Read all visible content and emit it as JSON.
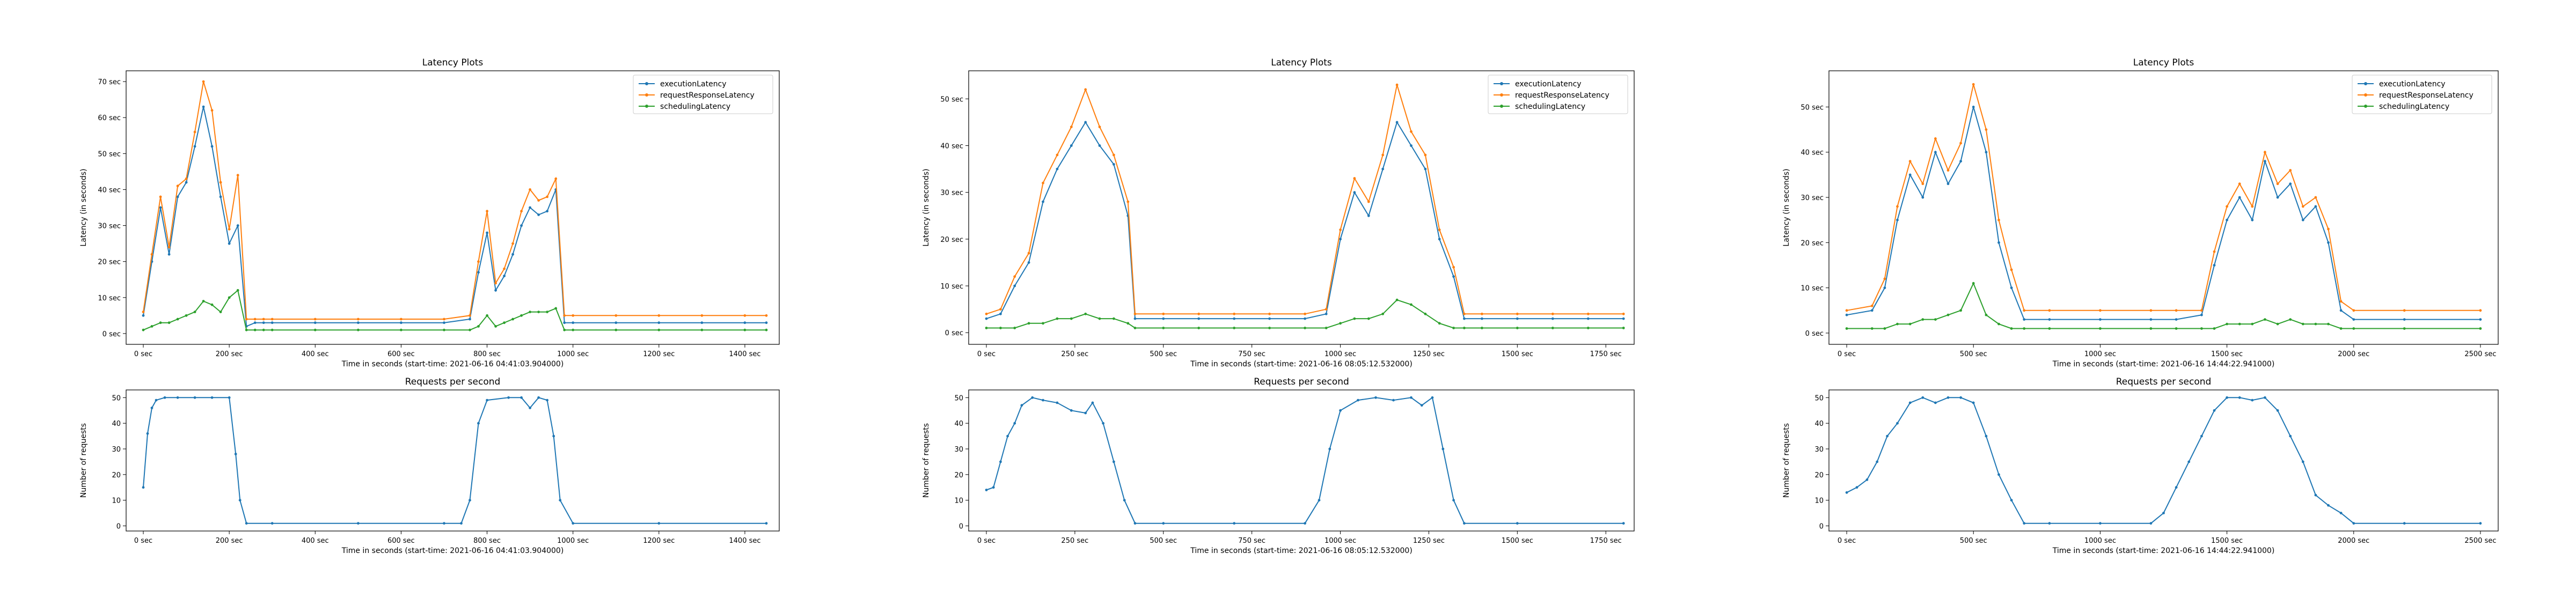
{
  "colors": {
    "execution": "#1f77b4",
    "request": "#ff7f0e",
    "scheduling": "#2ca02c",
    "rps": "#1f77b4"
  },
  "chart_data": [
    {
      "type": "line",
      "title": "Latency Plots",
      "xlabel": "Time in seconds (start-time: 2021-06-16 04:41:03.904000)",
      "ylabel": "Latency (in seconds)",
      "xlim": [
        -40,
        1480
      ],
      "ylim": [
        -3,
        73
      ],
      "xticks": [
        0,
        200,
        400,
        600,
        800,
        1000,
        1200,
        1400
      ],
      "xtick_labels": [
        "0 sec",
        "200 sec",
        "400 sec",
        "600 sec",
        "800 sec",
        "1000 sec",
        "1200 sec",
        "1400 sec"
      ],
      "yticks": [
        0,
        10,
        20,
        30,
        40,
        50,
        60,
        70
      ],
      "ytick_labels": [
        "0 sec",
        "10 sec",
        "20 sec",
        "30 sec",
        "40 sec",
        "50 sec",
        "60 sec",
        "70 sec"
      ],
      "legend": "top-right",
      "grid": false,
      "x": [
        0,
        20,
        40,
        60,
        80,
        100,
        120,
        140,
        160,
        180,
        200,
        220,
        240,
        260,
        280,
        300,
        400,
        500,
        600,
        700,
        760,
        780,
        800,
        820,
        840,
        860,
        880,
        900,
        920,
        940,
        960,
        980,
        1000,
        1100,
        1200,
        1300,
        1400,
        1450
      ],
      "series": [
        {
          "name": "executionLatency",
          "values": [
            5,
            20,
            35,
            22,
            38,
            42,
            52,
            63,
            52,
            38,
            25,
            30,
            2,
            3,
            3,
            3,
            3,
            3,
            3,
            3,
            4,
            17,
            28,
            12,
            16,
            22,
            30,
            35,
            33,
            34,
            40,
            3,
            3,
            3,
            3,
            3,
            3,
            3
          ]
        },
        {
          "name": "requestResponseLatency",
          "values": [
            6,
            22,
            38,
            24,
            41,
            43,
            56,
            70,
            62,
            42,
            29,
            44,
            4,
            4,
            4,
            4,
            4,
            4,
            4,
            4,
            5,
            20,
            34,
            14,
            18,
            25,
            34,
            40,
            37,
            38,
            43,
            5,
            5,
            5,
            5,
            5,
            5,
            5
          ]
        },
        {
          "name": "schedulingLatency",
          "values": [
            1,
            2,
            3,
            3,
            4,
            5,
            6,
            9,
            8,
            6,
            10,
            12,
            1,
            1,
            1,
            1,
            1,
            1,
            1,
            1,
            1,
            2,
            5,
            2,
            3,
            4,
            5,
            6,
            6,
            6,
            7,
            1,
            1,
            1,
            1,
            1,
            1,
            1
          ]
        }
      ]
    },
    {
      "type": "line",
      "title": "Requests per second",
      "xlabel": "Time in seconds (start-time: 2021-06-16 04:41:03.904000)",
      "ylabel": "Number of requests",
      "xlim": [
        -40,
        1480
      ],
      "ylim": [
        -2,
        53
      ],
      "xticks": [
        0,
        200,
        400,
        600,
        800,
        1000,
        1200,
        1400
      ],
      "xtick_labels": [
        "0 sec",
        "200 sec",
        "400 sec",
        "600 sec",
        "800 sec",
        "1000 sec",
        "1200 sec",
        "1400 sec"
      ],
      "yticks": [
        0,
        10,
        20,
        30,
        40,
        50
      ],
      "ytick_labels": [
        "0",
        "10",
        "20",
        "30",
        "40",
        "50"
      ],
      "x": [
        0,
        10,
        20,
        30,
        50,
        80,
        120,
        160,
        200,
        215,
        225,
        240,
        300,
        500,
        700,
        740,
        760,
        780,
        800,
        850,
        880,
        900,
        920,
        940,
        955,
        970,
        1000,
        1200,
        1450
      ],
      "series": [
        {
          "name": "",
          "values": [
            15,
            36,
            46,
            49,
            50,
            50,
            50,
            50,
            50,
            28,
            10,
            1,
            1,
            1,
            1,
            1,
            10,
            40,
            49,
            50,
            50,
            46,
            50,
            49,
            35,
            10,
            1,
            1,
            1
          ]
        }
      ]
    },
    {
      "type": "line",
      "title": "Latency Plots",
      "xlabel": "Time in seconds (start-time: 2021-06-16 08:05:12.532000)",
      "ylabel": "Latency (in seconds)",
      "xlim": [
        -50,
        1830
      ],
      "ylim": [
        -2.5,
        56
      ],
      "xticks": [
        0,
        250,
        500,
        750,
        1000,
        1250,
        1500,
        1750
      ],
      "xtick_labels": [
        "0 sec",
        "250 sec",
        "500 sec",
        "750 sec",
        "1000 sec",
        "1250 sec",
        "1500 sec",
        "1750 sec"
      ],
      "yticks": [
        0,
        10,
        20,
        30,
        40,
        50
      ],
      "ytick_labels": [
        "0 sec",
        "10 sec",
        "20 sec",
        "30 sec",
        "40 sec",
        "50 sec"
      ],
      "legend": "top-right",
      "grid": false,
      "x": [
        0,
        40,
        80,
        120,
        160,
        200,
        240,
        280,
        320,
        360,
        400,
        420,
        500,
        600,
        700,
        800,
        900,
        960,
        1000,
        1040,
        1080,
        1120,
        1160,
        1200,
        1240,
        1280,
        1320,
        1350,
        1400,
        1500,
        1600,
        1700,
        1800
      ],
      "series": [
        {
          "name": "executionLatency",
          "values": [
            3,
            4,
            10,
            15,
            28,
            35,
            40,
            45,
            40,
            36,
            25,
            3,
            3,
            3,
            3,
            3,
            3,
            4,
            20,
            30,
            25,
            35,
            45,
            40,
            35,
            20,
            12,
            3,
            3,
            3,
            3,
            3,
            3
          ]
        },
        {
          "name": "requestResponseLatency",
          "values": [
            4,
            5,
            12,
            17,
            32,
            38,
            44,
            52,
            44,
            38,
            28,
            4,
            4,
            4,
            4,
            4,
            4,
            5,
            22,
            33,
            28,
            38,
            53,
            43,
            38,
            22,
            14,
            4,
            4,
            4,
            4,
            4,
            4
          ]
        },
        {
          "name": "schedulingLatency",
          "values": [
            1,
            1,
            1,
            2,
            2,
            3,
            3,
            4,
            3,
            3,
            2,
            1,
            1,
            1,
            1,
            1,
            1,
            1,
            2,
            3,
            3,
            4,
            7,
            6,
            4,
            2,
            1,
            1,
            1,
            1,
            1,
            1,
            1
          ]
        }
      ]
    },
    {
      "type": "line",
      "title": "Requests per second",
      "xlabel": "Time in seconds (start-time: 2021-06-16 08:05:12.532000)",
      "ylabel": "Number of requests",
      "xlim": [
        -50,
        1830
      ],
      "ylim": [
        -2,
        53
      ],
      "xticks": [
        0,
        250,
        500,
        750,
        1000,
        1250,
        1500,
        1750
      ],
      "xtick_labels": [
        "0 sec",
        "250 sec",
        "500 sec",
        "750 sec",
        "1000 sec",
        "1250 sec",
        "1500 sec",
        "1750 sec"
      ],
      "yticks": [
        0,
        10,
        20,
        30,
        40,
        50
      ],
      "ytick_labels": [
        "0",
        "10",
        "20",
        "30",
        "40",
        "50"
      ],
      "x": [
        0,
        20,
        40,
        60,
        80,
        100,
        130,
        160,
        200,
        240,
        280,
        300,
        330,
        360,
        390,
        420,
        500,
        700,
        900,
        940,
        970,
        1000,
        1050,
        1100,
        1150,
        1200,
        1230,
        1260,
        1290,
        1320,
        1350,
        1500,
        1800
      ],
      "series": [
        {
          "name": "",
          "values": [
            14,
            15,
            25,
            35,
            40,
            47,
            50,
            49,
            48,
            45,
            44,
            48,
            40,
            25,
            10,
            1,
            1,
            1,
            1,
            10,
            30,
            45,
            49,
            50,
            49,
            50,
            47,
            50,
            30,
            10,
            1,
            1,
            1
          ]
        }
      ]
    },
    {
      "type": "line",
      "title": "Latency Plots",
      "xlabel": "Time in seconds (start-time: 2021-06-16 14:44:22.941000)",
      "ylabel": "Latency (in seconds)",
      "xlim": [
        -70,
        2570
      ],
      "ylim": [
        -2.5,
        58
      ],
      "xticks": [
        0,
        500,
        1000,
        1500,
        2000,
        2500
      ],
      "xtick_labels": [
        "0 sec",
        "500 sec",
        "1000 sec",
        "1500 sec",
        "2000 sec",
        "2500 sec"
      ],
      "yticks": [
        0,
        10,
        20,
        30,
        40,
        50
      ],
      "ytick_labels": [
        "0 sec",
        "10 sec",
        "20 sec",
        "30 sec",
        "40 sec",
        "50 sec"
      ],
      "legend": "top-right",
      "grid": false,
      "x": [
        0,
        100,
        150,
        200,
        250,
        300,
        350,
        400,
        450,
        500,
        550,
        600,
        650,
        700,
        800,
        1000,
        1200,
        1300,
        1400,
        1450,
        1500,
        1550,
        1600,
        1650,
        1700,
        1750,
        1800,
        1850,
        1900,
        1950,
        2000,
        2200,
        2500
      ],
      "series": [
        {
          "name": "executionLatency",
          "values": [
            4,
            5,
            10,
            25,
            35,
            30,
            40,
            33,
            38,
            50,
            40,
            20,
            10,
            3,
            3,
            3,
            3,
            3,
            4,
            15,
            25,
            30,
            25,
            38,
            30,
            33,
            25,
            28,
            20,
            5,
            3,
            3,
            3
          ]
        },
        {
          "name": "requestResponseLatency",
          "values": [
            5,
            6,
            12,
            28,
            38,
            33,
            43,
            36,
            42,
            55,
            45,
            25,
            14,
            5,
            5,
            5,
            5,
            5,
            5,
            18,
            28,
            33,
            28,
            40,
            33,
            36,
            28,
            30,
            23,
            7,
            5,
            5,
            5
          ]
        },
        {
          "name": "schedulingLatency",
          "values": [
            1,
            1,
            1,
            2,
            2,
            3,
            3,
            4,
            5,
            11,
            4,
            2,
            1,
            1,
            1,
            1,
            1,
            1,
            1,
            1,
            2,
            2,
            2,
            3,
            2,
            3,
            2,
            2,
            2,
            1,
            1,
            1,
            1
          ]
        }
      ]
    },
    {
      "type": "line",
      "title": "Requests per second",
      "xlabel": "Time in seconds (start-time: 2021-06-16 14:44:22.941000)",
      "ylabel": "Number of requests",
      "xlim": [
        -70,
        2570
      ],
      "ylim": [
        -2,
        53
      ],
      "xticks": [
        0,
        500,
        1000,
        1500,
        2000,
        2500
      ],
      "xtick_labels": [
        "0 sec",
        "500 sec",
        "1000 sec",
        "1500 sec",
        "2000 sec",
        "2500 sec"
      ],
      "yticks": [
        0,
        10,
        20,
        30,
        40,
        50
      ],
      "ytick_labels": [
        "0",
        "10",
        "20",
        "30",
        "40",
        "50"
      ],
      "x": [
        0,
        40,
        80,
        120,
        160,
        200,
        250,
        300,
        350,
        400,
        450,
        500,
        550,
        600,
        650,
        700,
        800,
        1000,
        1200,
        1250,
        1300,
        1350,
        1400,
        1450,
        1500,
        1550,
        1600,
        1650,
        1700,
        1750,
        1800,
        1850,
        1900,
        1950,
        2000,
        2200,
        2500
      ],
      "series": [
        {
          "name": "",
          "values": [
            13,
            15,
            18,
            25,
            35,
            40,
            48,
            50,
            48,
            50,
            50,
            48,
            35,
            20,
            10,
            1,
            1,
            1,
            1,
            5,
            15,
            25,
            35,
            45,
            50,
            50,
            49,
            50,
            45,
            35,
            25,
            12,
            8,
            5,
            1,
            1,
            1
          ]
        }
      ]
    }
  ]
}
